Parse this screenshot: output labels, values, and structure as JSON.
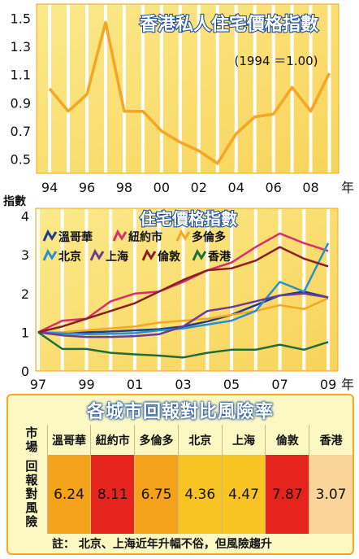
{
  "chart_data": [
    {
      "type": "line",
      "title": "香港私人住宅價格指數",
      "subtitle": "(1994 ＝1.00)",
      "x_ticklabels": [
        "94",
        "96",
        "98",
        "00",
        "02",
        "04",
        "06",
        "08"
      ],
      "x_unit": "年",
      "y_ticklabels": [
        "0.5",
        "0.7",
        "0.9",
        "1.1",
        "1.3",
        "1.5"
      ],
      "ylim": [
        0.4,
        1.6
      ],
      "xlim": [
        1993.3,
        2009.5
      ],
      "grid": true,
      "series": [
        {
          "x": [
            1994,
            1995,
            1996,
            1997,
            1998,
            1999,
            2000,
            2001,
            2002,
            2003,
            2004,
            2005,
            2006,
            2007,
            2008,
            2009
          ],
          "values": [
            1.0,
            0.84,
            0.96,
            1.47,
            0.84,
            0.84,
            0.7,
            0.62,
            0.56,
            0.47,
            0.68,
            0.8,
            0.82,
            1.01,
            0.84,
            1.11
          ],
          "color": "#f5a623"
        }
      ]
    },
    {
      "type": "line",
      "title": "住宅價格指數",
      "ylabel": "指數",
      "x_ticklabels": [
        "97",
        "99",
        "01",
        "03",
        "05",
        "07",
        "09"
      ],
      "x_unit": "年",
      "y_ticklabels": [
        "0",
        "1",
        "2",
        "3",
        "4"
      ],
      "ylim": [
        0,
        4.2
      ],
      "xlim": [
        1996.9,
        2009.4
      ],
      "grid": true,
      "legend": "top-left",
      "series": [
        {
          "name": "溫哥華",
          "color": "#1b3f8a",
          "x": [
            1997,
            1998,
            1999,
            2000,
            2001,
            2002,
            2003,
            2004,
            2005,
            2006,
            2007,
            2008,
            2009
          ],
          "values": [
            1.0,
            0.98,
            1.0,
            1.02,
            1.05,
            1.08,
            1.15,
            1.28,
            1.45,
            1.7,
            1.95,
            2.05,
            1.9
          ]
        },
        {
          "name": "紐約市",
          "color": "#d62f6e",
          "x": [
            1997,
            1998,
            1999,
            2000,
            2001,
            2002,
            2003,
            2004,
            2005,
            2006,
            2007,
            2008,
            2009
          ],
          "values": [
            1.0,
            1.3,
            1.35,
            1.8,
            2.0,
            2.05,
            2.3,
            2.6,
            2.8,
            3.2,
            3.55,
            3.3,
            3.1
          ]
        },
        {
          "name": "多倫多",
          "color": "#f5a623",
          "x": [
            1997,
            1998,
            1999,
            2000,
            2001,
            2002,
            2003,
            2004,
            2005,
            2006,
            2007,
            2008,
            2009
          ],
          "values": [
            1.0,
            1.0,
            1.05,
            1.1,
            1.15,
            1.25,
            1.3,
            1.35,
            1.45,
            1.55,
            1.7,
            1.6,
            1.88
          ]
        },
        {
          "name": "北京",
          "color": "#2a8fd0",
          "x": [
            1997,
            1998,
            1999,
            2000,
            2001,
            2002,
            2003,
            2004,
            2005,
            2006,
            2007,
            2008,
            2009
          ],
          "values": [
            1.0,
            0.97,
            0.95,
            0.96,
            0.98,
            1.05,
            1.1,
            1.2,
            1.3,
            1.55,
            2.3,
            2.05,
            3.3
          ]
        },
        {
          "name": "上海",
          "color": "#6a3d96",
          "x": [
            1997,
            1998,
            1999,
            2000,
            2001,
            2002,
            2003,
            2004,
            2005,
            2006,
            2007,
            2008,
            2009
          ],
          "values": [
            1.0,
            0.92,
            0.88,
            0.88,
            0.9,
            0.95,
            1.15,
            1.55,
            1.65,
            1.8,
            1.95,
            2.0,
            1.9
          ]
        },
        {
          "name": "倫敦",
          "color": "#8a1f1f",
          "x": [
            1997,
            1998,
            1999,
            2000,
            2001,
            2002,
            2003,
            2004,
            2005,
            2006,
            2007,
            2008,
            2009
          ],
          "values": [
            1.0,
            1.15,
            1.35,
            1.55,
            1.75,
            2.05,
            2.35,
            2.6,
            2.65,
            2.85,
            3.2,
            2.9,
            2.7
          ]
        },
        {
          "name": "香港",
          "color": "#1f6e3a",
          "x": [
            1997,
            1998,
            1999,
            2000,
            2001,
            2002,
            2003,
            2004,
            2005,
            2006,
            2007,
            2008,
            2009
          ],
          "values": [
            1.0,
            0.57,
            0.57,
            0.47,
            0.43,
            0.4,
            0.35,
            0.47,
            0.55,
            0.55,
            0.68,
            0.55,
            0.75
          ]
        }
      ]
    },
    {
      "type": "table",
      "title": "各城市回報對比風險率",
      "row_labels": [
        "市場",
        "回報對風險"
      ],
      "columns": [
        "溫哥華",
        "紐約市",
        "多倫多",
        "北京",
        "上海",
        "倫敦",
        "香港"
      ],
      "values": [
        "6.24",
        "8.11",
        "6.75",
        "4.36",
        "4.47",
        "7.87",
        "3.07"
      ],
      "cell_colors": [
        "#f5a21b",
        "#e5251d",
        "#f5a21b",
        "#f8c423",
        "#f8c423",
        "#e5251d",
        "#fbd49a"
      ],
      "note": "註： 北京、上海近年升幅不俗，但風險趨升"
    }
  ]
}
